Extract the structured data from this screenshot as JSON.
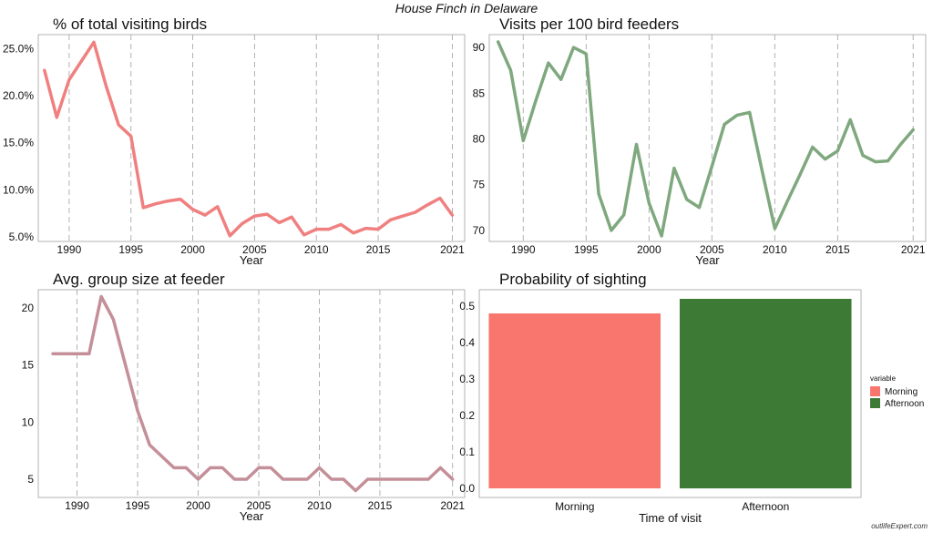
{
  "title": "House Finch in Delaware",
  "source": "outlifeExpert.com",
  "chart_data": [
    {
      "type": "line",
      "title": "% of total visiting birds",
      "xlabel": "Year",
      "ylabel": "",
      "color": "#f08080",
      "x": [
        1988,
        1989,
        1990,
        1992,
        1993,
        1994,
        1995,
        1996,
        1997,
        1998,
        1999,
        2000,
        2001,
        2002,
        2003,
        2004,
        2005,
        2006,
        2007,
        2008,
        2009,
        2010,
        2011,
        2012,
        2013,
        2014,
        2015,
        2016,
        2017,
        2018,
        2019,
        2020,
        2021
      ],
      "y": [
        22.7,
        17.7,
        21.7,
        25.7,
        21.0,
        16.9,
        15.7,
        8.1,
        8.5,
        8.8,
        9.0,
        7.9,
        7.3,
        8.2,
        5.1,
        6.4,
        7.2,
        7.4,
        6.5,
        7.1,
        5.2,
        5.8,
        5.8,
        6.3,
        5.4,
        5.9,
        5.8,
        6.8,
        7.2,
        7.6,
        8.4,
        9.1,
        7.3
      ],
      "xlim": [
        1987.5,
        2022
      ],
      "ylim": [
        4.5,
        26.5
      ],
      "yticks": [
        5,
        10,
        15,
        20,
        25
      ],
      "ytick_labels": [
        "5.0%",
        "10.0%",
        "15.0%",
        "20.0%",
        "25.0%"
      ],
      "xticks": [
        1990,
        1995,
        2000,
        2005,
        2010,
        2015,
        2021
      ],
      "grid": "vertical dashed"
    },
    {
      "type": "line",
      "title": "Visits per 100 bird feeders",
      "xlabel": "Year",
      "ylabel": "",
      "color": "#7fa87f",
      "x": [
        1988,
        1989,
        1990,
        1991,
        1992,
        1993,
        1994,
        1995,
        1996,
        1997,
        1998,
        1999,
        2000,
        2001,
        2002,
        2003,
        2004,
        2005,
        2006,
        2007,
        2008,
        2009,
        2010,
        2011,
        2012,
        2013,
        2014,
        2015,
        2016,
        2017,
        2018,
        2019,
        2020,
        2021
      ],
      "y": [
        90.6,
        87.5,
        79.8,
        84.2,
        88.3,
        86.5,
        90.0,
        89.3,
        74.0,
        70.0,
        71.7,
        79.4,
        73.0,
        69.4,
        76.8,
        73.4,
        72.5,
        77.0,
        81.6,
        82.6,
        82.9,
        76.5,
        70.2,
        73.2,
        76.1,
        79.1,
        77.8,
        78.7,
        82.1,
        78.2,
        77.5,
        77.6,
        79.4,
        81.0
      ],
      "xlim": [
        1987.3,
        2022
      ],
      "ylim": [
        68.8,
        91.4
      ],
      "yticks": [
        70,
        75,
        80,
        85,
        90
      ],
      "ytick_labels": [
        "70",
        "75",
        "80",
        "85",
        "90"
      ],
      "xticks": [
        1990,
        1995,
        2000,
        2005,
        2010,
        2015,
        2021
      ],
      "grid": "vertical dashed"
    },
    {
      "type": "line",
      "title": "Avg. group size at feeder",
      "xlabel": "Year",
      "ylabel": "",
      "color": "#c48f98",
      "x": [
        1988,
        1989,
        1990,
        1991,
        1992,
        1993,
        1994,
        1995,
        1996,
        1997,
        1998,
        1999,
        2000,
        2001,
        2002,
        2003,
        2004,
        2005,
        2006,
        2007,
        2008,
        2009,
        2010,
        2011,
        2012,
        2013,
        2014,
        2015,
        2016,
        2017,
        2018,
        2019,
        2020,
        2021
      ],
      "y": [
        16,
        16,
        16,
        16,
        21,
        19,
        15,
        11,
        8,
        7,
        6,
        6,
        5,
        6,
        6,
        5,
        5,
        6,
        6,
        5,
        5,
        5,
        6,
        5,
        5,
        4,
        5,
        5,
        5,
        5,
        5,
        5,
        6,
        5
      ],
      "xlim": [
        1986.8,
        2022
      ],
      "ylim": [
        3.4,
        21.6
      ],
      "yticks": [
        5,
        10,
        15,
        20
      ],
      "ytick_labels": [
        "5",
        "10",
        "15",
        "20"
      ],
      "xticks": [
        1990,
        1995,
        2000,
        2005,
        2010,
        2015,
        2021
      ],
      "grid": "vertical dashed"
    },
    {
      "type": "bar",
      "title": "Probability of sighting",
      "xlabel": "Time of visit",
      "ylabel": "",
      "categories": [
        "Morning",
        "Afternoon"
      ],
      "values": [
        0.48,
        0.52
      ],
      "colors": [
        "#f8766d",
        "#3d7a35"
      ],
      "ylim": [
        -0.025,
        0.545
      ],
      "yticks": [
        0,
        0.1,
        0.2,
        0.3,
        0.4,
        0.5
      ],
      "ytick_labels": [
        "0.0",
        "0.1",
        "0.2",
        "0.3",
        "0.4",
        "0.5"
      ],
      "legend": {
        "title": "variable",
        "entries": [
          "Morning",
          "Afternoon"
        ],
        "position": "right"
      }
    }
  ]
}
